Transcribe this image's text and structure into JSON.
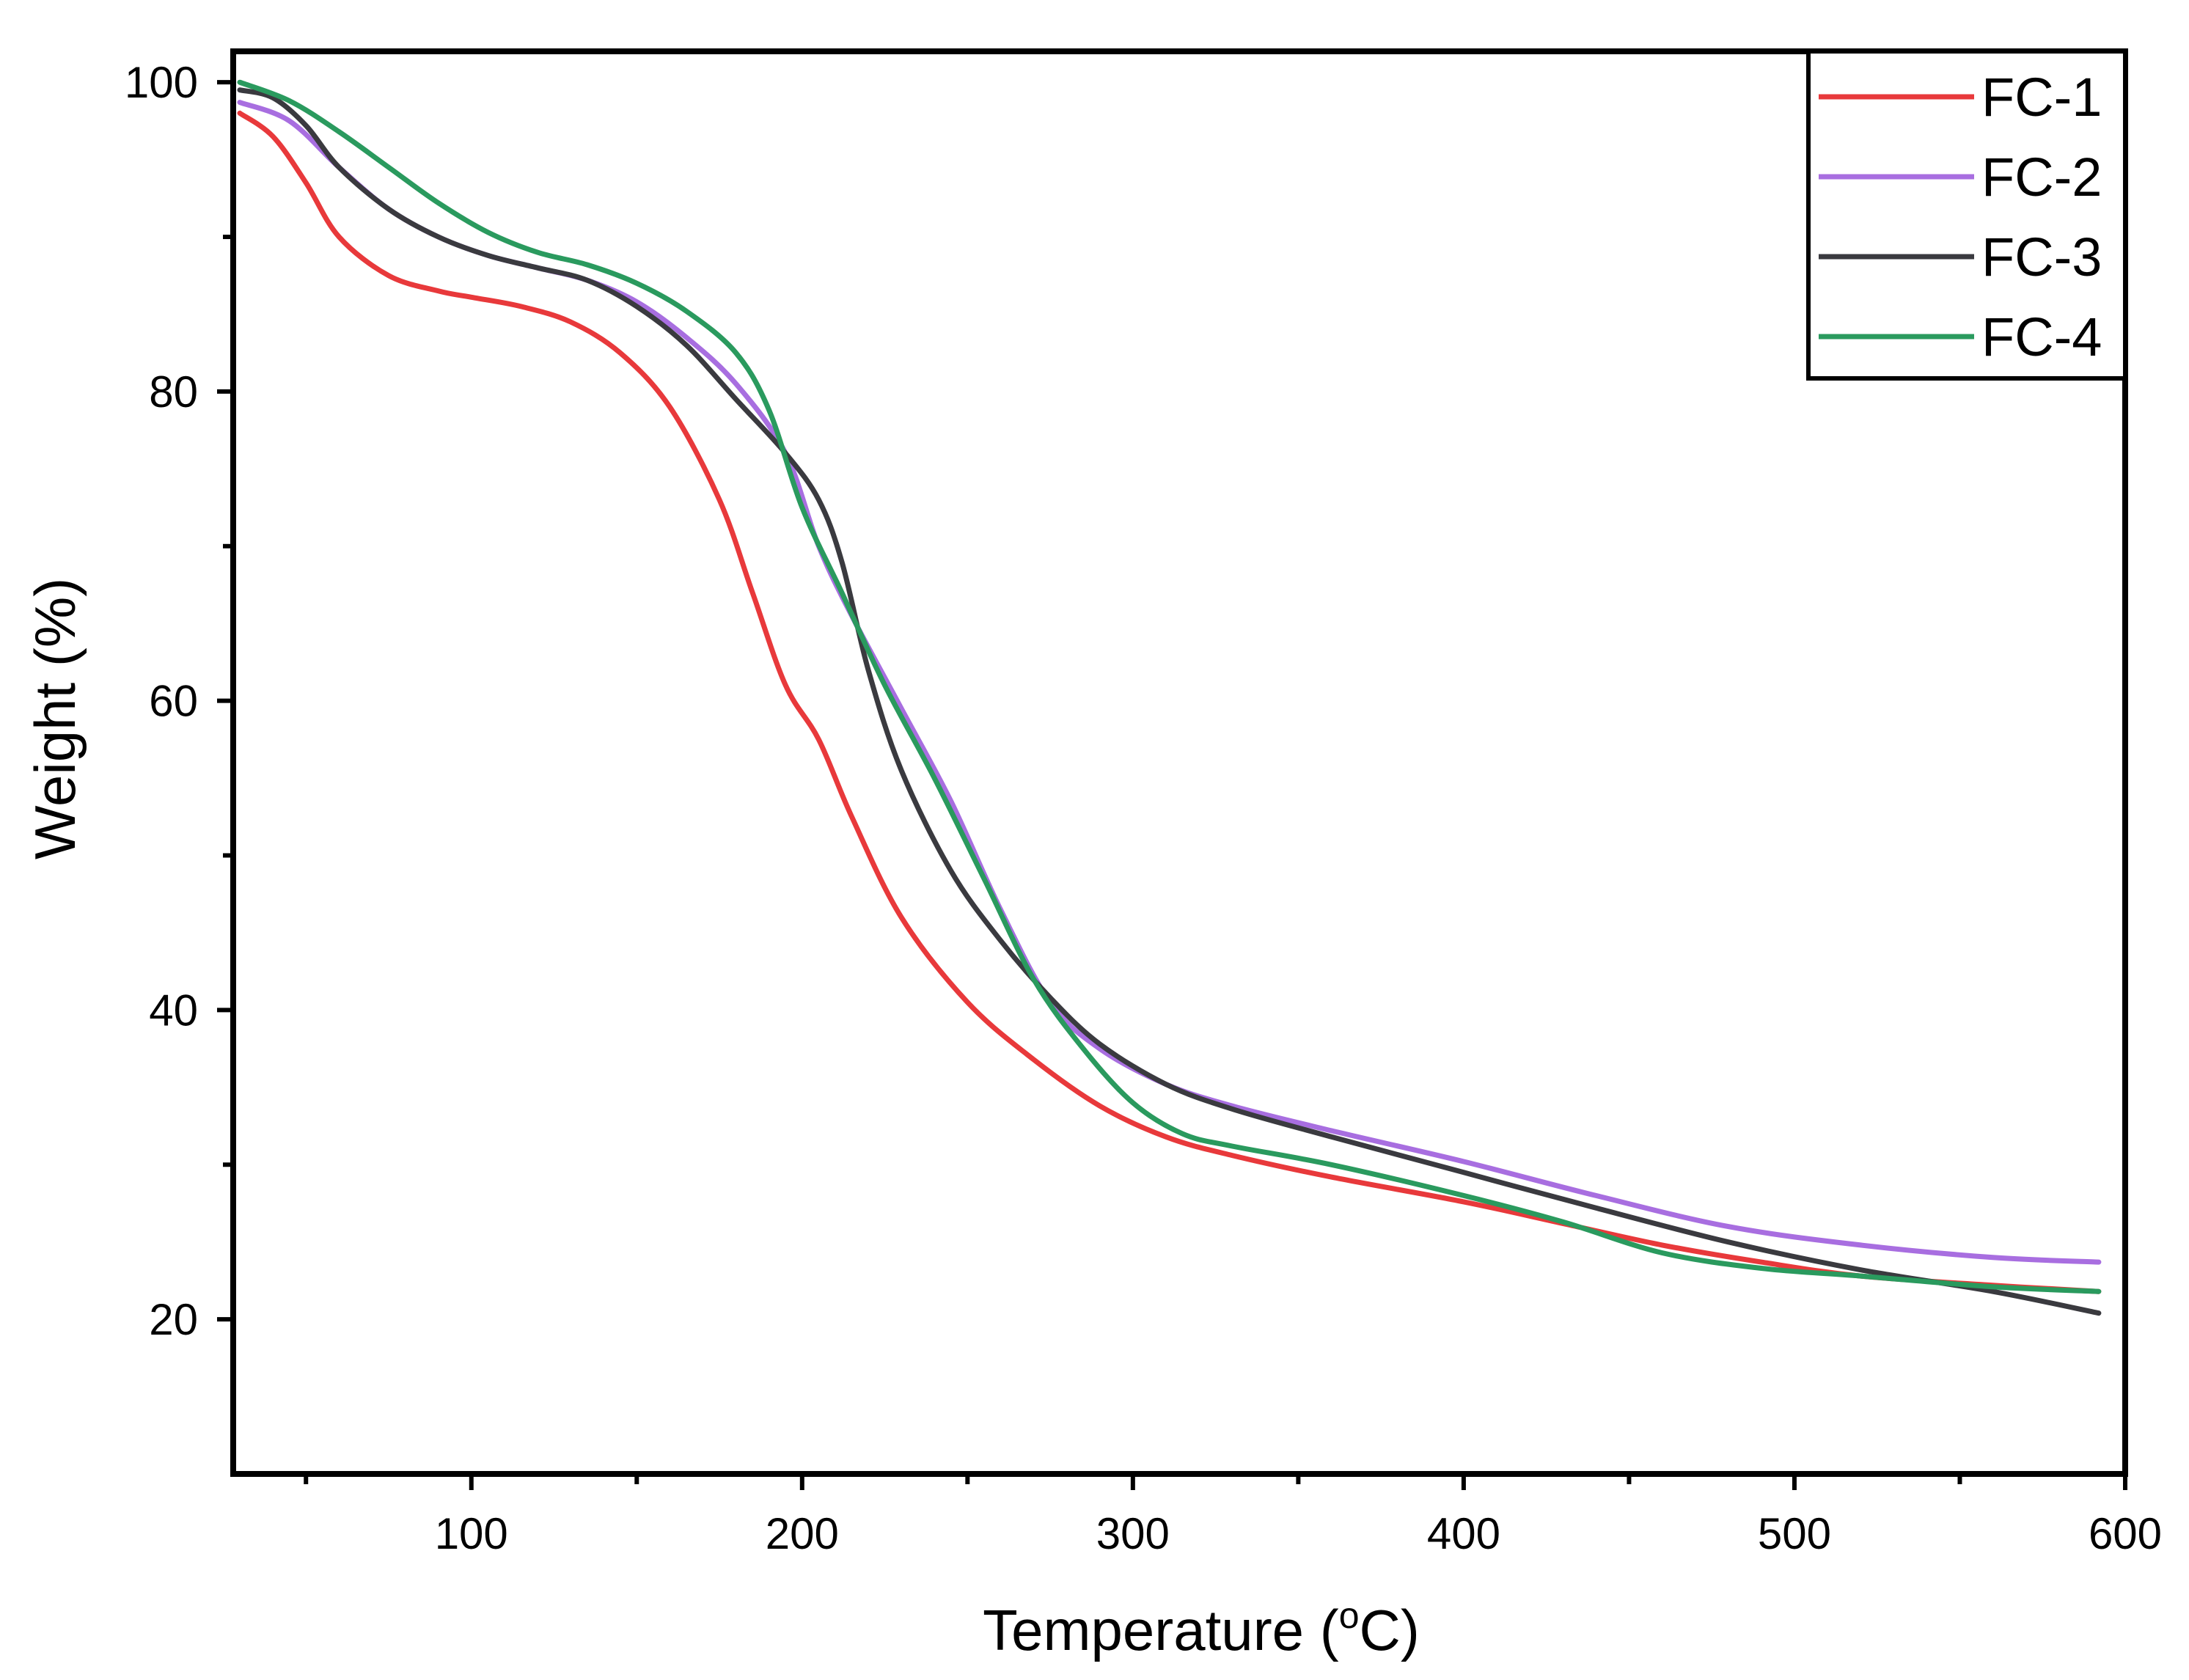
{
  "chart_data": {
    "type": "line",
    "title": "",
    "xlabel": "Temperature (",
    "xlabel_sup": "o",
    "xlabel_unit": "C)",
    "ylabel": "Weight (%)",
    "xlim": [
      28,
      600
    ],
    "ylim": [
      10,
      102
    ],
    "xticks": [
      100,
      200,
      300,
      400,
      500,
      600
    ],
    "xtick_labels": [
      "100",
      "200",
      "300",
      "400",
      "500",
      "600"
    ],
    "x_minor_ticks": [
      50,
      150,
      250,
      350,
      450,
      550
    ],
    "yticks": [
      20,
      40,
      60,
      80,
      100
    ],
    "ytick_labels": [
      "20",
      "40",
      "60",
      "80",
      "100"
    ],
    "y_minor_ticks": [
      30,
      50,
      70,
      90
    ],
    "grid": false,
    "legend": "top-right",
    "series": [
      {
        "name": "FC-1",
        "color": "#e8393b",
        "points": [
          [
            30,
            98
          ],
          [
            40,
            96.5
          ],
          [
            50,
            93.5
          ],
          [
            60,
            90
          ],
          [
            75,
            87.5
          ],
          [
            90,
            86.5
          ],
          [
            100,
            86.1
          ],
          [
            115,
            85.5
          ],
          [
            130,
            84.5
          ],
          [
            145,
            82.5
          ],
          [
            160,
            79
          ],
          [
            175,
            73
          ],
          [
            185,
            67
          ],
          [
            195,
            61
          ],
          [
            205,
            57.5
          ],
          [
            215,
            52.5
          ],
          [
            230,
            46
          ],
          [
            250,
            40.5
          ],
          [
            270,
            36.8
          ],
          [
            290,
            33.8
          ],
          [
            310,
            31.8
          ],
          [
            330,
            30.6
          ],
          [
            360,
            29.2
          ],
          [
            400,
            27.6
          ],
          [
            430,
            26.2
          ],
          [
            460,
            24.8
          ],
          [
            490,
            23.7
          ],
          [
            520,
            22.8
          ],
          [
            560,
            22.2
          ],
          [
            592,
            21.8
          ]
        ]
      },
      {
        "name": "FC-2",
        "color": "#a86ee0",
        "points": [
          [
            30,
            98.7
          ],
          [
            45,
            97.5
          ],
          [
            60,
            94.5
          ],
          [
            75,
            91.8
          ],
          [
            90,
            90
          ],
          [
            105,
            88.8
          ],
          [
            120,
            88
          ],
          [
            135,
            87.2
          ],
          [
            150,
            85.8
          ],
          [
            165,
            83.5
          ],
          [
            180,
            80.5
          ],
          [
            195,
            76
          ],
          [
            205,
            70
          ],
          [
            215,
            65.5
          ],
          [
            230,
            59.5
          ],
          [
            245,
            53.5
          ],
          [
            260,
            46.5
          ],
          [
            275,
            40.5
          ],
          [
            290,
            37.5
          ],
          [
            310,
            35.2
          ],
          [
            330,
            33.8
          ],
          [
            360,
            32.2
          ],
          [
            400,
            30.2
          ],
          [
            440,
            28
          ],
          [
            480,
            26
          ],
          [
            520,
            24.8
          ],
          [
            560,
            24
          ],
          [
            592,
            23.7
          ]
        ]
      },
      {
        "name": "FC-3",
        "color": "#3a3a3f",
        "points": [
          [
            30,
            99.5
          ],
          [
            40,
            99
          ],
          [
            50,
            97.2
          ],
          [
            60,
            94.5
          ],
          [
            75,
            91.8
          ],
          [
            90,
            90
          ],
          [
            105,
            88.8
          ],
          [
            120,
            88
          ],
          [
            135,
            87.2
          ],
          [
            150,
            85.5
          ],
          [
            165,
            83
          ],
          [
            180,
            79.5
          ],
          [
            195,
            76
          ],
          [
            205,
            73
          ],
          [
            212,
            69
          ],
          [
            220,
            62
          ],
          [
            230,
            55.5
          ],
          [
            245,
            49
          ],
          [
            260,
            44.5
          ],
          [
            275,
            40.8
          ],
          [
            290,
            37.8
          ],
          [
            310,
            35.2
          ],
          [
            330,
            33.6
          ],
          [
            360,
            31.8
          ],
          [
            400,
            29.5
          ],
          [
            440,
            27.2
          ],
          [
            480,
            25
          ],
          [
            520,
            23.2
          ],
          [
            560,
            21.8
          ],
          [
            592,
            20.4
          ]
        ]
      },
      {
        "name": "FC-4",
        "color": "#2a9a5e",
        "points": [
          [
            30,
            100
          ],
          [
            45,
            98.8
          ],
          [
            60,
            96.8
          ],
          [
            75,
            94.5
          ],
          [
            90,
            92.2
          ],
          [
            105,
            90.3
          ],
          [
            120,
            89
          ],
          [
            135,
            88.2
          ],
          [
            150,
            87
          ],
          [
            165,
            85.2
          ],
          [
            180,
            82.5
          ],
          [
            190,
            78.8
          ],
          [
            200,
            72.5
          ],
          [
            212,
            67
          ],
          [
            225,
            61
          ],
          [
            240,
            55
          ],
          [
            255,
            48.5
          ],
          [
            270,
            42
          ],
          [
            285,
            37.5
          ],
          [
            300,
            34
          ],
          [
            315,
            32
          ],
          [
            330,
            31.2
          ],
          [
            360,
            30
          ],
          [
            400,
            28
          ],
          [
            430,
            26.3
          ],
          [
            460,
            24.3
          ],
          [
            490,
            23.3
          ],
          [
            520,
            22.8
          ],
          [
            560,
            22.1
          ],
          [
            592,
            21.8
          ]
        ]
      }
    ]
  }
}
